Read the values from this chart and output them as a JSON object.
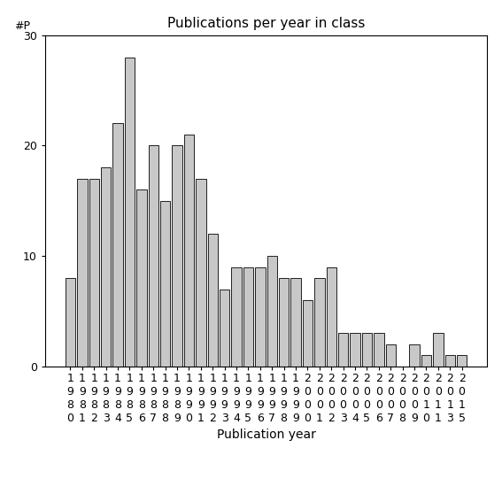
{
  "title": "Publications per year in class",
  "xlabel": "Publication year",
  "ylabel": "#P",
  "years": [
    "1980",
    "1981",
    "1982",
    "1983",
    "1984",
    "1985",
    "1986",
    "1987",
    "1988",
    "1989",
    "1990",
    "1991",
    "1992",
    "1993",
    "1994",
    "1995",
    "1996",
    "1997",
    "1998",
    "1999",
    "2000",
    "2001",
    "2002",
    "2003",
    "2004",
    "2005",
    "2006",
    "2007",
    "2008",
    "2009",
    "2010",
    "2011",
    "2013",
    "2015"
  ],
  "values": [
    8,
    17,
    17,
    18,
    22,
    28,
    16,
    20,
    15,
    20,
    21,
    17,
    12,
    7,
    9,
    9,
    9,
    10,
    8,
    8,
    6,
    8,
    9,
    3,
    3,
    3,
    3,
    2,
    0,
    2,
    1,
    3,
    1,
    1
  ],
  "bar_color": "#c8c8c8",
  "bar_edge_color": "#000000",
  "ylim": [
    0,
    30
  ],
  "yticks": [
    0,
    10,
    20,
    30
  ],
  "background_color": "#ffffff",
  "title_fontsize": 11,
  "label_fontsize": 10,
  "tick_fontsize": 9
}
